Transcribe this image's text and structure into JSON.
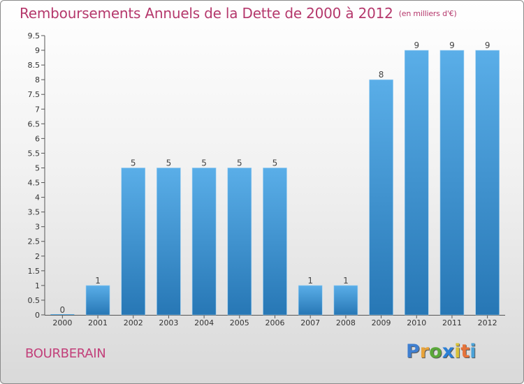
{
  "title": "Remboursements Annuels de la Dette de 2000 à 2012",
  "subtitle": "(en milliers d'€)",
  "commune": "BOURBERAIN",
  "logo": {
    "letters": [
      "P",
      "r",
      "o",
      "x",
      "i",
      "t",
      "i"
    ],
    "colors": [
      "#3f7fd0",
      "#e8a33a",
      "#5aa83a",
      "#2b7fd6",
      "#d9c23a",
      "#e6733a",
      "#4aa2d8"
    ]
  },
  "colors": {
    "bar_top": "#5aaee8",
    "bar_bottom": "#2777b5",
    "title": "#b5386c"
  },
  "chart_data": {
    "type": "bar",
    "categories": [
      "2000",
      "2001",
      "2002",
      "2003",
      "2004",
      "2005",
      "2006",
      "2007",
      "2008",
      "2009",
      "2010",
      "2011",
      "2012"
    ],
    "values": [
      0,
      1,
      5,
      5,
      5,
      5,
      5,
      1,
      1,
      8,
      9,
      9,
      9
    ],
    "data_labels": [
      "0",
      "1",
      "5",
      "5",
      "5",
      "5",
      "5",
      "1",
      "1",
      "8",
      "9",
      "9",
      "9"
    ],
    "yticks": [
      "0",
      "0.5",
      "1",
      "1.5",
      "2",
      "2.5",
      "3",
      "3.5",
      "4",
      "4.5",
      "5",
      "5.5",
      "6",
      "6.5",
      "7",
      "7.5",
      "8",
      "8.5",
      "9",
      "9.5"
    ],
    "ylim": [
      0,
      9.5
    ],
    "grid": false
  }
}
